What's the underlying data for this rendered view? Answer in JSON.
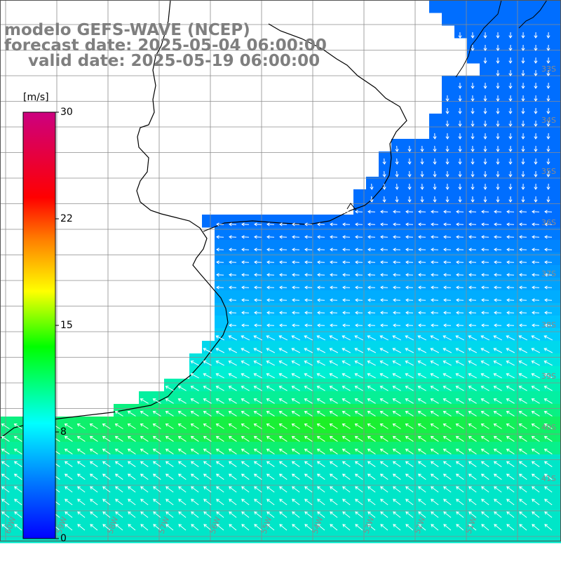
{
  "map": {
    "title_lines": [
      "modelo GEFS-WAVE (NCEP)",
      "forecast date: 2025-05-04 06:00:00",
      "valid date: 2025-05-19 06:00:00"
    ],
    "product": "wind speed with direction vectors",
    "region": "Río de la Plata / Uruguay coast, South Atlantic",
    "grid": true,
    "land_color": "#ffffff",
    "coastline_color": "#000000",
    "grid_color": "#8c8c8c",
    "arrow_color": "#ffffff",
    "lat_labels": [
      "33S",
      "34S",
      "35S",
      "36S",
      "37S",
      "38S",
      "39S",
      "40S",
      "41S"
    ],
    "lon_labels": [
      "60W",
      "59W",
      "58W",
      "57W",
      "56W",
      "55W",
      "54W",
      "53W",
      "52W",
      "51W"
    ]
  },
  "colorbar": {
    "unit": "[m/s]",
    "ticks": [
      "30",
      "22",
      "15",
      "8",
      "0"
    ],
    "min": 0,
    "max": 30,
    "colors": [
      "#0000ff",
      "#0080ff",
      "#00ffff",
      "#00ff00",
      "#ffff00",
      "#ff8000",
      "#ff0000",
      "#cc0080"
    ]
  }
}
